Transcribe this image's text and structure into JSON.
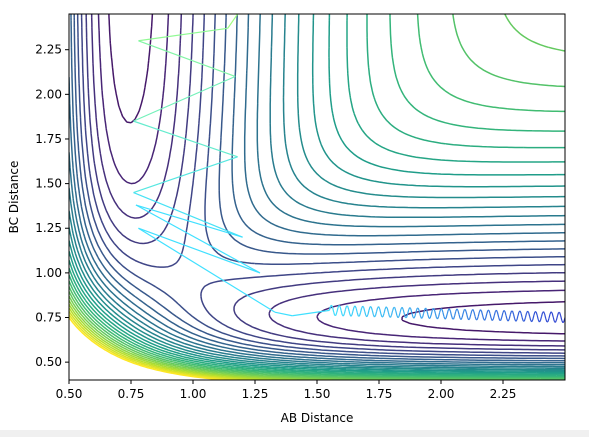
{
  "chart_data": {
    "type": "contour",
    "title": "",
    "xlabel": "AB Distance",
    "ylabel": "BC Distance",
    "xlim": [
      0.5,
      2.5
    ],
    "ylim": [
      0.4,
      2.45
    ],
    "x_ticks": [
      0.5,
      0.75,
      1.0,
      1.25,
      1.5,
      1.75,
      2.0,
      2.25
    ],
    "x_tick_labels": [
      "0.50",
      "0.75",
      "1.00",
      "1.25",
      "1.50",
      "1.75",
      "2.00",
      "2.25"
    ],
    "y_ticks": [
      0.5,
      0.75,
      1.0,
      1.25,
      1.5,
      1.75,
      2.0,
      2.25
    ],
    "y_tick_labels": [
      "0.50",
      "0.75",
      "1.00",
      "1.25",
      "1.50",
      "1.75",
      "2.00",
      "2.25"
    ],
    "colormap": "viridis",
    "grid": false,
    "legend": "none",
    "surface": {
      "description": "LEPS-like potential energy surface contours",
      "well_min_ab": 0.74,
      "well_min_bc": 0.74,
      "n_levels": 30
    },
    "trajectory": {
      "color_start": "#9fff7f",
      "color_mid": "#40e0ff",
      "color_end": "#2f3fd0",
      "points": [
        [
          1.18,
          2.45
        ],
        [
          1.14,
          2.37
        ],
        [
          0.78,
          2.3
        ],
        [
          1.17,
          2.1
        ],
        [
          0.76,
          1.85
        ],
        [
          1.18,
          1.65
        ],
        [
          0.76,
          1.45
        ],
        [
          1.2,
          1.2
        ],
        [
          0.77,
          1.38
        ],
        [
          1.27,
          1.0
        ],
        [
          0.78,
          1.25
        ],
        [
          1.33,
          0.78
        ],
        [
          1.4,
          0.76
        ],
        [
          1.55,
          0.79
        ],
        [
          2.5,
          0.75
        ]
      ]
    }
  }
}
